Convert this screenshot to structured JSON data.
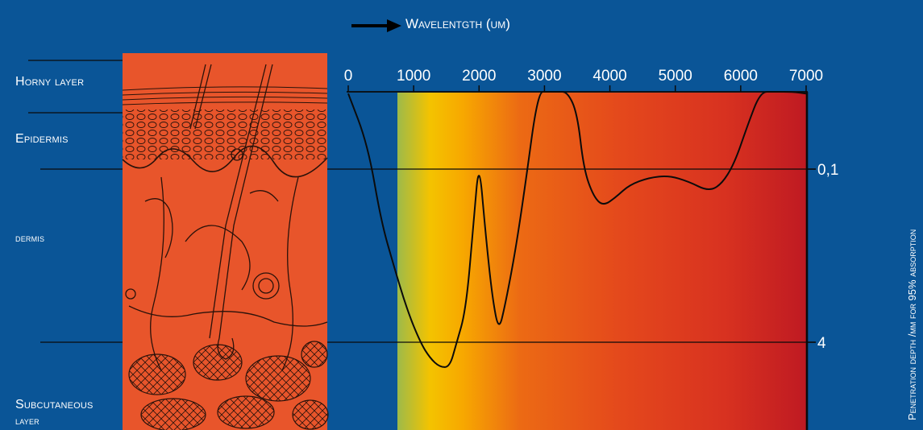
{
  "title": "Wavelentgth (um)",
  "y_title": "Penetration depth /mm for 95% absorption",
  "layers": [
    {
      "label": "Horny layer"
    },
    {
      "label": "Epidermis"
    },
    {
      "label": "dermis"
    },
    {
      "label": "Subcutaneous"
    },
    {
      "label": "layer"
    }
  ],
  "colors": {
    "background": "#0a5597",
    "skin": "#e8552b",
    "band_start": "#f4c300",
    "band_end": "#c01c1c"
  },
  "chart_data": {
    "type": "line",
    "xlabel": "Wavelentgth (um)",
    "ylabel": "Penetration depth /mm for 95% absorption",
    "x_ticks": [
      "0",
      "1000",
      "2000",
      "3000",
      "4000",
      "5000",
      "6000",
      "7000"
    ],
    "y_ticks": [
      "0,1",
      "4"
    ],
    "xlim": [
      0,
      7000
    ],
    "series": [
      {
        "points": [
          [
            0,
            0.02
          ],
          [
            300,
            0.06
          ],
          [
            500,
            0.3
          ],
          [
            700,
            0.8
          ],
          [
            900,
            2
          ],
          [
            1100,
            4
          ],
          [
            1250,
            5.6
          ],
          [
            1400,
            6.8
          ],
          [
            1550,
            6.8
          ],
          [
            1650,
            4.2
          ],
          [
            1800,
            2
          ],
          [
            1920,
            0.3
          ],
          [
            2000,
            0.08
          ],
          [
            2100,
            0.4
          ],
          [
            2200,
            1.5
          ],
          [
            2300,
            3.2
          ],
          [
            2400,
            1.8
          ],
          [
            2550,
            0.6
          ],
          [
            2700,
            0.15
          ],
          [
            2900,
            0.015
          ],
          [
            3050,
            0.01
          ],
          [
            3200,
            0.012
          ],
          [
            3350,
            0.01
          ],
          [
            3500,
            0.03
          ],
          [
            3600,
            0.1
          ],
          [
            3750,
            0.18
          ],
          [
            3900,
            0.22
          ],
          [
            4100,
            0.18
          ],
          [
            4300,
            0.14
          ],
          [
            4600,
            0.12
          ],
          [
            4900,
            0.115
          ],
          [
            5200,
            0.13
          ],
          [
            5500,
            0.16
          ],
          [
            5700,
            0.14
          ],
          [
            5900,
            0.09
          ],
          [
            6100,
            0.04
          ],
          [
            6300,
            0.015
          ],
          [
            6500,
            0.01
          ],
          [
            6800,
            0.012
          ],
          [
            7000,
            0.02
          ]
        ]
      }
    ]
  }
}
